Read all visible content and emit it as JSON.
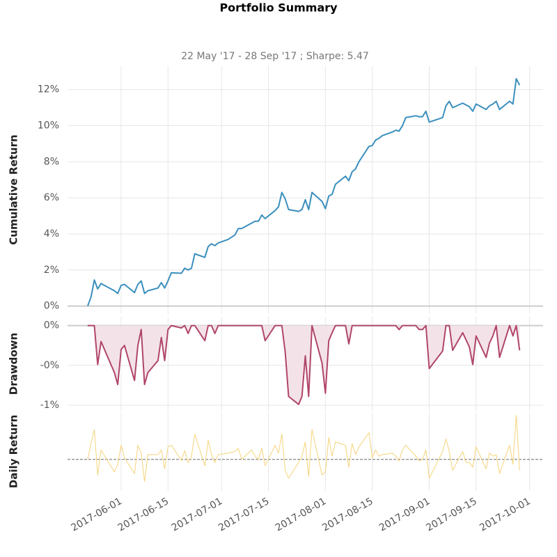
{
  "chart_data": [
    {
      "type": "line",
      "title": "Portfolio Summary",
      "subtitle": "22 May '17 - 28 Sep '17 ;  Sharpe: 5.47",
      "ylabel": "Cumulative Return",
      "x": [
        "2017-05-22",
        "2017-05-23",
        "2017-05-24",
        "2017-05-25",
        "2017-05-26",
        "2017-05-30",
        "2017-05-31",
        "2017-06-01",
        "2017-06-02",
        "2017-06-05",
        "2017-06-06",
        "2017-06-07",
        "2017-06-08",
        "2017-06-09",
        "2017-06-12",
        "2017-06-13",
        "2017-06-14",
        "2017-06-15",
        "2017-06-16",
        "2017-06-19",
        "2017-06-20",
        "2017-06-21",
        "2017-06-22",
        "2017-06-23",
        "2017-06-26",
        "2017-06-27",
        "2017-06-28",
        "2017-06-29",
        "2017-06-30",
        "2017-07-03",
        "2017-07-05",
        "2017-07-06",
        "2017-07-07",
        "2017-07-10",
        "2017-07-11",
        "2017-07-12",
        "2017-07-13",
        "2017-07-14",
        "2017-07-17",
        "2017-07-18",
        "2017-07-19",
        "2017-07-20",
        "2017-07-21",
        "2017-07-24",
        "2017-07-25",
        "2017-07-26",
        "2017-07-27",
        "2017-07-28",
        "2017-07-31",
        "2017-08-01",
        "2017-08-02",
        "2017-08-03",
        "2017-08-04",
        "2017-08-07",
        "2017-08-08",
        "2017-08-09",
        "2017-08-10",
        "2017-08-11",
        "2017-08-14",
        "2017-08-15",
        "2017-08-16",
        "2017-08-17",
        "2017-08-18",
        "2017-08-21",
        "2017-08-22",
        "2017-08-23",
        "2017-08-24",
        "2017-08-25",
        "2017-08-28",
        "2017-08-29",
        "2017-08-30",
        "2017-08-31",
        "2017-09-01",
        "2017-09-05",
        "2017-09-06",
        "2017-09-07",
        "2017-09-08",
        "2017-09-11",
        "2017-09-12",
        "2017-09-13",
        "2017-09-14",
        "2017-09-15",
        "2017-09-18",
        "2017-09-19",
        "2017-09-20",
        "2017-09-21",
        "2017-09-22",
        "2017-09-25",
        "2017-09-26",
        "2017-09-27",
        "2017-09-28"
      ],
      "series": [
        {
          "color": "#3a8fbd",
          "values": [
            0,
            0.5,
            1.45,
            0.95,
            1.25,
            0.85,
            0.7,
            1.15,
            1.2,
            0.75,
            1.2,
            1.4,
            0.7,
            0.85,
            1.0,
            1.3,
            1.0,
            1.4,
            1.85,
            1.82,
            2.1,
            2.0,
            2.1,
            2.9,
            2.7,
            3.3,
            3.45,
            3.35,
            3.5,
            3.7,
            3.95,
            4.3,
            4.3,
            4.6,
            4.7,
            4.7,
            5.05,
            4.85,
            5.3,
            5.5,
            6.3,
            5.95,
            5.35,
            5.25,
            5.35,
            5.9,
            5.35,
            6.3,
            5.8,
            5.4,
            6.1,
            6.2,
            6.75,
            7.2,
            6.95,
            7.45,
            7.6,
            8.0,
            8.85,
            8.9,
            9.2,
            9.3,
            9.45,
            9.65,
            9.75,
            9.7,
            10.0,
            10.45,
            10.55,
            10.5,
            10.5,
            10.8,
            10.2,
            10.45,
            11.1,
            11.35,
            11.0,
            11.25,
            11.15,
            11.05,
            10.8,
            11.2,
            10.9,
            11.1,
            11.2,
            11.35,
            10.9,
            11.35,
            11.2,
            12.6,
            12.25
          ]
        }
      ],
      "xlim": [
        "2017-05-16",
        "2017-10-05"
      ],
      "xticks": [
        "2017-06-01",
        "2017-06-15",
        "2017-07-01",
        "2017-07-15",
        "2017-08-01",
        "2017-08-15",
        "2017-09-01",
        "2017-09-15",
        "2017-10-01"
      ],
      "ylim": [
        -0.4,
        13.3
      ],
      "yticks": [
        {
          "value": 0,
          "label": "0%"
        },
        {
          "value": 2,
          "label": "2%"
        },
        {
          "value": 4,
          "label": "4%"
        },
        {
          "value": 6,
          "label": "6%"
        },
        {
          "value": 8,
          "label": "8%"
        },
        {
          "value": 10,
          "label": "10%"
        },
        {
          "value": 12,
          "label": "12%"
        }
      ],
      "grid": true
    },
    {
      "type": "area",
      "ylabel": "Drawdown",
      "x": [
        "2017-05-22",
        "2017-05-23",
        "2017-05-24",
        "2017-05-25",
        "2017-05-26",
        "2017-05-30",
        "2017-05-31",
        "2017-06-01",
        "2017-06-02",
        "2017-06-05",
        "2017-06-06",
        "2017-06-07",
        "2017-06-08",
        "2017-06-09",
        "2017-06-12",
        "2017-06-13",
        "2017-06-14",
        "2017-06-15",
        "2017-06-16",
        "2017-06-19",
        "2017-06-20",
        "2017-06-21",
        "2017-06-22",
        "2017-06-23",
        "2017-06-26",
        "2017-06-27",
        "2017-06-28",
        "2017-06-29",
        "2017-06-30",
        "2017-07-03",
        "2017-07-05",
        "2017-07-06",
        "2017-07-07",
        "2017-07-10",
        "2017-07-11",
        "2017-07-12",
        "2017-07-13",
        "2017-07-14",
        "2017-07-17",
        "2017-07-18",
        "2017-07-19",
        "2017-07-20",
        "2017-07-21",
        "2017-07-24",
        "2017-07-25",
        "2017-07-26",
        "2017-07-27",
        "2017-07-28",
        "2017-07-31",
        "2017-08-01",
        "2017-08-02",
        "2017-08-03",
        "2017-08-04",
        "2017-08-07",
        "2017-08-08",
        "2017-08-09",
        "2017-08-10",
        "2017-08-11",
        "2017-08-14",
        "2017-08-15",
        "2017-08-16",
        "2017-08-17",
        "2017-08-18",
        "2017-08-21",
        "2017-08-22",
        "2017-08-23",
        "2017-08-24",
        "2017-08-25",
        "2017-08-28",
        "2017-08-29",
        "2017-08-30",
        "2017-08-31",
        "2017-09-01",
        "2017-09-05",
        "2017-09-06",
        "2017-09-07",
        "2017-09-08",
        "2017-09-11",
        "2017-09-12",
        "2017-09-13",
        "2017-09-14",
        "2017-09-15",
        "2017-09-18",
        "2017-09-19",
        "2017-09-20",
        "2017-09-21",
        "2017-09-22",
        "2017-09-25",
        "2017-09-26",
        "2017-09-27",
        "2017-09-28"
      ],
      "series": [
        {
          "color": "#b0456a",
          "fill": "#f3e3e8",
          "values": [
            0,
            0,
            0,
            -0.49,
            -0.2,
            -0.59,
            -0.74,
            -0.3,
            -0.25,
            -0.69,
            -0.25,
            -0.05,
            -0.74,
            -0.59,
            -0.44,
            -0.15,
            -0.44,
            -0.05,
            0,
            -0.03,
            0,
            -0.1,
            0,
            0,
            -0.19,
            0,
            0,
            -0.1,
            0,
            0,
            0,
            0,
            0,
            0,
            0,
            0,
            0,
            -0.19,
            0,
            0,
            0,
            -0.33,
            -0.89,
            -0.99,
            -0.89,
            -0.38,
            -0.89,
            0,
            -0.47,
            -0.85,
            -0.19,
            -0.09,
            0,
            0,
            -0.23,
            0,
            0,
            0,
            0,
            0,
            0,
            0,
            0,
            0,
            0,
            -0.05,
            0,
            0,
            0,
            -0.05,
            -0.05,
            0,
            -0.54,
            -0.32,
            0,
            0,
            -0.31,
            -0.09,
            -0.18,
            -0.27,
            -0.49,
            -0.13,
            -0.4,
            -0.22,
            -0.13,
            0,
            -0.4,
            0,
            -0.13,
            0,
            -0.31
          ]
        }
      ],
      "xlim": [
        "2017-05-16",
        "2017-10-05"
      ],
      "xticks": [
        "2017-06-01",
        "2017-06-15",
        "2017-07-01",
        "2017-07-15",
        "2017-08-01",
        "2017-08-15",
        "2017-09-01",
        "2017-09-15",
        "2017-10-01"
      ],
      "ylim": [
        -1.07,
        0.11
      ],
      "yticks": [
        {
          "value": 0,
          "label": "0%"
        },
        {
          "value": -0.5,
          "label": "-0%"
        },
        {
          "value": -1,
          "label": "-1%"
        }
      ],
      "grid": true
    },
    {
      "type": "line",
      "ylabel": "Daily Return",
      "x": [
        "2017-05-22",
        "2017-05-23",
        "2017-05-24",
        "2017-05-25",
        "2017-05-26",
        "2017-05-30",
        "2017-05-31",
        "2017-06-01",
        "2017-06-02",
        "2017-06-05",
        "2017-06-06",
        "2017-06-07",
        "2017-06-08",
        "2017-06-09",
        "2017-06-12",
        "2017-06-13",
        "2017-06-14",
        "2017-06-15",
        "2017-06-16",
        "2017-06-19",
        "2017-06-20",
        "2017-06-21",
        "2017-06-22",
        "2017-06-23",
        "2017-06-26",
        "2017-06-27",
        "2017-06-28",
        "2017-06-29",
        "2017-06-30",
        "2017-07-03",
        "2017-07-05",
        "2017-07-06",
        "2017-07-07",
        "2017-07-10",
        "2017-07-11",
        "2017-07-12",
        "2017-07-13",
        "2017-07-14",
        "2017-07-17",
        "2017-07-18",
        "2017-07-19",
        "2017-07-20",
        "2017-07-21",
        "2017-07-24",
        "2017-07-25",
        "2017-07-26",
        "2017-07-27",
        "2017-07-28",
        "2017-07-31",
        "2017-08-01",
        "2017-08-02",
        "2017-08-03",
        "2017-08-04",
        "2017-08-07",
        "2017-08-08",
        "2017-08-09",
        "2017-08-10",
        "2017-08-11",
        "2017-08-14",
        "2017-08-15",
        "2017-08-16",
        "2017-08-17",
        "2017-08-18",
        "2017-08-21",
        "2017-08-22",
        "2017-08-23",
        "2017-08-24",
        "2017-08-25",
        "2017-08-28",
        "2017-08-29",
        "2017-08-30",
        "2017-08-31",
        "2017-09-01",
        "2017-09-05",
        "2017-09-06",
        "2017-09-07",
        "2017-09-08",
        "2017-09-11",
        "2017-09-12",
        "2017-09-13",
        "2017-09-14",
        "2017-09-15",
        "2017-09-18",
        "2017-09-19",
        "2017-09-20",
        "2017-09-21",
        "2017-09-22",
        "2017-09-25",
        "2017-09-26",
        "2017-09-27",
        "2017-09-28"
      ],
      "series": [
        {
          "color": "#f5d37a",
          "values": [
            0,
            0.5,
            0.95,
            -0.5,
            0.3,
            -0.4,
            -0.15,
            0.45,
            0.05,
            -0.45,
            0.45,
            0.2,
            -0.7,
            0.15,
            0.15,
            0.3,
            -0.3,
            0.4,
            0.45,
            -0.03,
            0.28,
            -0.1,
            0.1,
            0.8,
            -0.2,
            0.6,
            0.15,
            -0.1,
            0.15,
            0.2,
            0.25,
            0.35,
            0,
            0.3,
            0.1,
            0,
            0.35,
            -0.2,
            0.45,
            0.2,
            0.8,
            -0.35,
            -0.6,
            -0.1,
            0.1,
            0.55,
            -0.55,
            0.95,
            -0.5,
            -0.4,
            0.7,
            0.1,
            0.55,
            0.45,
            -0.25,
            0.5,
            0.15,
            0.4,
            0.85,
            0.05,
            0.3,
            0.1,
            0.15,
            0.2,
            0.1,
            -0.05,
            0.3,
            0.45,
            0.1,
            -0.05,
            0,
            0.3,
            -0.6,
            0.25,
            0.65,
            0.25,
            -0.35,
            0.25,
            -0.1,
            -0.1,
            -0.25,
            0.4,
            -0.3,
            0.2,
            0.1,
            0.15,
            -0.45,
            0.45,
            -0.15,
            1.4,
            -0.35
          ]
        }
      ],
      "xlim": [
        "2017-05-16",
        "2017-10-05"
      ],
      "xticks": [
        "2017-06-01",
        "2017-06-15",
        "2017-07-01",
        "2017-07-15",
        "2017-08-01",
        "2017-08-15",
        "2017-09-01",
        "2017-09-15",
        "2017-10-01"
      ],
      "ylim": [
        -1.0,
        1.5
      ],
      "zero_line": 0,
      "grid": true
    }
  ]
}
